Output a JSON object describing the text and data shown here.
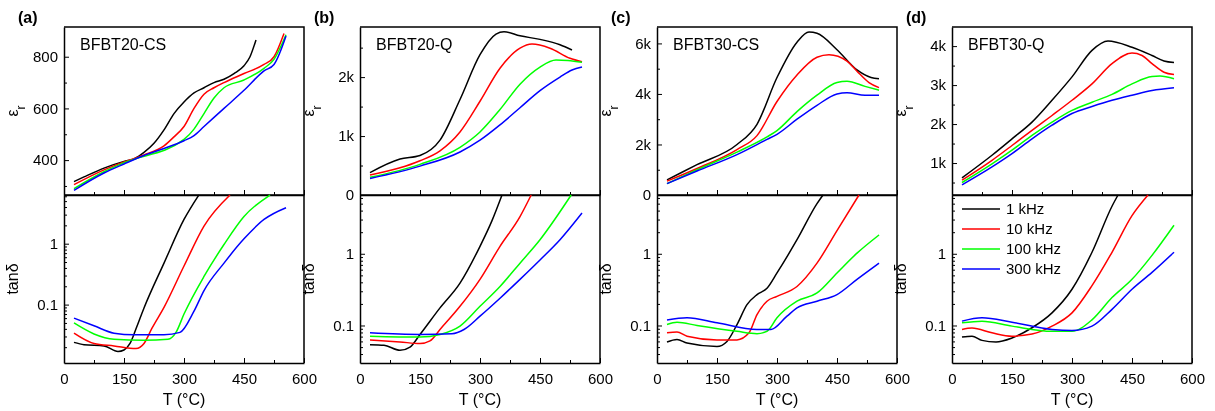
{
  "chart_data": [
    {
      "type": "line",
      "title": "(a)",
      "annotations": [
        "BFBT20-CS"
      ],
      "ylabel": "ε$_{r}$",
      "xlim": [
        0,
        600
      ],
      "xticks": [
        0,
        {
          "value": 75,
          "label": null
        },
        150,
        {
          "value": 225,
          "label": null
        },
        300,
        {
          "value": 375,
          "label": null
        },
        450,
        {
          "value": 525,
          "label": null
        },
        600
      ],
      "ylim": [
        265,
        915
      ],
      "yticks": [
        {
          "value": 300,
          "label": null
        },
        400,
        {
          "value": 500,
          "label": null
        },
        600,
        {
          "value": 700,
          "label": null
        },
        800
      ],
      "tick_labels": "y",
      "series": [
        {
          "color": "#000000",
          "x": [
            25,
            50,
            100,
            150,
            175,
            200,
            225,
            250,
            275,
            300,
            325,
            350,
            375,
            400,
            425,
            450,
            465,
            480
          ],
          "values": [
            317,
            335,
            369,
            395,
            405,
            430,
            465,
            517,
            580,
            625,
            660,
            680,
            700,
            713,
            735,
            765,
            800,
            865
          ]
        },
        {
          "color": "#ff0000",
          "x": [
            25,
            100,
            150,
            200,
            250,
            275,
            300,
            325,
            350,
            375,
            400,
            450,
            500,
            525,
            550
          ],
          "values": [
            305,
            362,
            393,
            420,
            455,
            490,
            530,
            600,
            655,
            680,
            700,
            735,
            770,
            800,
            890
          ]
        },
        {
          "color": "#00ff00",
          "x": [
            25,
            100,
            150,
            200,
            250,
            300,
            325,
            350,
            375,
            400,
            450,
            500,
            525,
            555
          ],
          "values": [
            290,
            355,
            390,
            null,
            null,
            480,
            520,
            580,
            640,
            680,
            710,
            755,
            790,
            885
          ]
        },
        {
          "color": "#0000ff",
          "x": [
            25,
            100,
            150,
            200,
            250,
            300,
            325,
            350,
            400,
            450,
            500,
            525,
            555
          ],
          "values": [
            283,
            350,
            385,
            418,
            445,
            475,
            495,
            530,
            600,
            670,
            745,
            770,
            880
          ]
        }
      ]
    },
    {
      "type": "line",
      "xlabel": "T (°C)",
      "ylabel": "tanδ",
      "log": true,
      "xlim": [
        0,
        600
      ],
      "xticks": [
        0,
        {
          "value": 75,
          "label": null
        },
        150,
        {
          "value": 225,
          "label": null
        },
        300,
        {
          "value": 375,
          "label": null
        },
        450,
        {
          "value": 525,
          "label": null
        },
        600
      ],
      "ylim": [
        0.011,
        6.3
      ],
      "yticks": [
        {
          "value": 0.02,
          "label": null
        },
        {
          "value": 0.03,
          "label": null
        },
        {
          "value": 0.04,
          "label": null
        },
        {
          "value": 0.05,
          "label": null
        },
        {
          "value": 0.06,
          "label": null
        },
        {
          "value": 0.07,
          "label": null
        },
        {
          "value": 0.08,
          "label": null
        },
        {
          "value": 0.09,
          "label": null
        },
        0.1,
        {
          "value": 0.2,
          "label": null
        },
        {
          "value": 0.3,
          "label": null
        },
        {
          "value": 0.4,
          "label": null
        },
        {
          "value": 0.5,
          "label": null
        },
        {
          "value": 0.6,
          "label": null
        },
        {
          "value": 0.7,
          "label": null
        },
        {
          "value": 0.8,
          "label": null
        },
        {
          "value": 0.9,
          "label": null
        },
        1,
        {
          "value": 2,
          "label": null
        },
        {
          "value": 3,
          "label": null
        },
        {
          "value": 4,
          "label": null
        },
        {
          "value": 5,
          "label": null
        },
        {
          "value": 6,
          "label": null
        }
      ],
      "series": [
        {
          "color": "#000000",
          "x": [
            25,
            50,
            100,
            135,
            150,
            165,
            180,
            200,
            250,
            300,
            337
          ],
          "values": [
            0.024,
            0.022,
            0.021,
            0.017,
            0.018,
            0.023,
            0.04,
            0.088,
            0.48,
            2.5,
            6.3
          ]
        },
        {
          "color": "#ff0000",
          "x": [
            25,
            75,
            125,
            180,
            200,
            220,
            250,
            300,
            350,
            415
          ],
          "values": [
            0.034,
            0.023,
            0.021,
            0.019,
            0.023,
            0.041,
            0.09,
            0.43,
            1.95,
            6.3
          ]
        },
        {
          "color": "#00ff00",
          "x": [
            25,
            75,
            125,
            200,
            260,
            280,
            300,
            350,
            400,
            450,
            515
          ],
          "values": [
            0.05,
            0.033,
            0.027,
            0.026,
            0.027,
            0.035,
            0.07,
            0.29,
            0.97,
            2.8,
            6.3
          ]
        },
        {
          "color": "#0000ff",
          "x": [
            25,
            75,
            125,
            175,
            250,
            290,
            325,
            350,
            400,
            450,
            500,
            555
          ],
          "values": [
            0.06,
            0.045,
            0.034,
            0.032,
            0.032,
            0.035,
            0.078,
            0.17,
            0.48,
            1.2,
            2.5,
            3.9
          ]
        }
      ]
    },
    {
      "type": "line",
      "title": "(b)",
      "annotations": [
        "BFBT20-Q"
      ],
      "ylabel": "ε$_{r}$",
      "xlim": [
        0,
        600
      ],
      "xticks": [
        0,
        {
          "value": 75,
          "label": null
        },
        150,
        {
          "value": 225,
          "label": null
        },
        300,
        {
          "value": 375,
          "label": null
        },
        450,
        {
          "value": 525,
          "label": null
        },
        600
      ],
      "ylim": [
        0,
        2850
      ],
      "yticks": [
        {
          "value": 0,
          "label": "0"
        },
        {
          "value": 500,
          "label": null
        },
        {
          "value": 1000,
          "label": "1k"
        },
        {
          "value": 1500,
          "label": null
        },
        {
          "value": 2000,
          "label": "2k"
        },
        {
          "value": 2500,
          "label": null
        }
      ],
      "tick_labels": "y",
      "series": [
        {
          "color": "#000000",
          "x": [
            25,
            100,
            150,
            200,
            250,
            300,
            340,
            360,
            400,
            450,
            500,
            530
          ],
          "values": [
            380,
            610,
            670,
            930,
            1620,
            2380,
            2730,
            2770,
            2700,
            2640,
            2550,
            2460
          ]
        },
        {
          "color": "#ff0000",
          "x": [
            25,
            150,
            200,
            250,
            300,
            350,
            400,
            430,
            475,
            525,
            555
          ],
          "values": [
            340,
            580,
            750,
            1070,
            1590,
            2150,
            2490,
            2560,
            2490,
            2320,
            2260
          ]
        },
        {
          "color": "#00ff00",
          "x": [
            25,
            150,
            250,
            300,
            350,
            400,
            450,
            490,
            520,
            555
          ],
          "values": [
            300,
            520,
            810,
            1070,
            1450,
            1880,
            2170,
            2290,
            2280,
            2250
          ]
        },
        {
          "color": "#0000ff",
          "x": [
            25,
            150,
            250,
            300,
            350,
            400,
            450,
            500,
            530,
            555
          ],
          "values": [
            280,
            490,
            730,
            930,
            1190,
            1480,
            1770,
            2000,
            2120,
            2170
          ]
        }
      ]
    },
    {
      "type": "line",
      "xlabel": "T (°C)",
      "ylabel": "tanδ",
      "log": true,
      "xlim": [
        0,
        600
      ],
      "xticks": [
        0,
        {
          "value": 75,
          "label": null
        },
        150,
        {
          "value": 225,
          "label": null
        },
        300,
        {
          "value": 375,
          "label": null
        },
        450,
        {
          "value": 525,
          "label": null
        },
        600
      ],
      "ylim": [
        0.03,
        6.6
      ],
      "yticks": [
        {
          "value": 0.04,
          "label": null
        },
        {
          "value": 0.05,
          "label": null
        },
        {
          "value": 0.06,
          "label": null
        },
        {
          "value": 0.07,
          "label": null
        },
        {
          "value": 0.08,
          "label": null
        },
        {
          "value": 0.09,
          "label": null
        },
        0.1,
        {
          "value": 0.2,
          "label": null
        },
        {
          "value": 0.3,
          "label": null
        },
        {
          "value": 0.4,
          "label": null
        },
        {
          "value": 0.5,
          "label": null
        },
        {
          "value": 0.6,
          "label": null
        },
        {
          "value": 0.7,
          "label": null
        },
        {
          "value": 0.8,
          "label": null
        },
        {
          "value": 0.9,
          "label": null
        },
        1,
        {
          "value": 2,
          "label": null
        },
        {
          "value": 3,
          "label": null
        },
        {
          "value": 4,
          "label": null
        },
        {
          "value": 5,
          "label": null
        },
        {
          "value": 6,
          "label": null
        }
      ],
      "series": [
        {
          "color": "#000000",
          "x": [
            25,
            60,
            100,
            125,
            150,
            200,
            250,
            300,
            330,
            355
          ],
          "values": [
            0.054,
            0.053,
            0.045,
            0.05,
            0.075,
            0.176,
            0.39,
            1.27,
            2.9,
            6.6
          ]
        },
        {
          "color": "#ff0000",
          "x": [
            25,
            100,
            150,
            175,
            200,
            250,
            300,
            350,
            400,
            428
          ],
          "values": [
            0.063,
            0.059,
            0.056,
            0.061,
            0.088,
            0.185,
            0.44,
            1.27,
            3.3,
            6.6
          ]
        },
        {
          "color": "#00ff00",
          "x": [
            25,
            150,
            200,
            250,
            300,
            350,
            400,
            450,
            528
          ],
          "values": [
            0.071,
            0.069,
            0.075,
            0.098,
            0.185,
            0.35,
            0.74,
            1.57,
            6.6
          ]
        },
        {
          "color": "#0000ff",
          "x": [
            25,
            150,
            230,
            260,
            300,
            350,
            400,
            450,
            500,
            555
          ],
          "values": [
            0.079,
            0.075,
            0.077,
            0.088,
            0.135,
            0.24,
            0.44,
            0.82,
            1.57,
            3.7
          ]
        }
      ]
    },
    {
      "type": "line",
      "title": "(c)",
      "annotations": [
        "BFBT30-CS"
      ],
      "ylabel": "ε$_{r}$",
      "xlim": [
        0,
        600
      ],
      "xticks": [
        0,
        {
          "value": 75,
          "label": null
        },
        150,
        {
          "value": 225,
          "label": null
        },
        300,
        {
          "value": 375,
          "label": null
        },
        450,
        {
          "value": 525,
          "label": null
        },
        600
      ],
      "ylim": [
        0,
        6650
      ],
      "yticks": [
        {
          "value": 0,
          "label": "0"
        },
        {
          "value": 1000,
          "label": null
        },
        {
          "value": 2000,
          "label": "2k"
        },
        {
          "value": 3000,
          "label": null
        },
        {
          "value": 4000,
          "label": "4k"
        },
        {
          "value": 5000,
          "label": null
        },
        {
          "value": 6000,
          "label": "6k"
        }
      ],
      "tick_labels": "y",
      "series": [
        {
          "color": "#000000",
          "x": [
            25,
            100,
            200,
            250,
            300,
            350,
            380,
            400,
            450,
            500,
            535,
            555
          ],
          "values": [
            600,
            1200,
            2000,
            2800,
            4650,
            6050,
            6450,
            6400,
            5750,
            4950,
            4650,
            4600
          ]
        },
        {
          "color": "#ff0000",
          "x": [
            25,
            100,
            200,
            250,
            300,
            350,
            400,
            430,
            475,
            500,
            530,
            555
          ],
          "values": [
            550,
            1050,
            1800,
            2350,
            3700,
            4750,
            5450,
            5550,
            5300,
            4900,
            4450,
            4250
          ]
        },
        {
          "color": "#00ff00",
          "x": [
            25,
            100,
            200,
            275,
            300,
            350,
            400,
            450,
            475,
            520,
            555
          ],
          "values": [
            450,
            1000,
            1700,
            2300,
            2550,
            3300,
            3950,
            4450,
            4500,
            4300,
            4150
          ]
        },
        {
          "color": "#0000ff",
          "x": [
            25,
            100,
            200,
            275,
            300,
            350,
            400,
            450,
            475,
            520,
            555
          ],
          "values": [
            450,
            950,
            1600,
            2200,
            2400,
            3000,
            3550,
            4000,
            4050,
            3950,
            3950
          ]
        }
      ]
    },
    {
      "type": "line",
      "xlabel": "T (°C)",
      "ylabel": "tanδ",
      "log": true,
      "xlim": [
        0,
        600
      ],
      "xticks": [
        0,
        {
          "value": 75,
          "label": null
        },
        150,
        {
          "value": 225,
          "label": null
        },
        300,
        {
          "value": 375,
          "label": null
        },
        450,
        {
          "value": 525,
          "label": null
        },
        600
      ],
      "ylim": [
        0.03,
        6.6
      ],
      "yticks": [
        {
          "value": 0.04,
          "label": null
        },
        {
          "value": 0.05,
          "label": null
        },
        {
          "value": 0.06,
          "label": null
        },
        {
          "value": 0.07,
          "label": null
        },
        {
          "value": 0.08,
          "label": null
        },
        {
          "value": 0.09,
          "label": null
        },
        0.1,
        {
          "value": 0.2,
          "label": null
        },
        {
          "value": 0.3,
          "label": null
        },
        {
          "value": 0.4,
          "label": null
        },
        {
          "value": 0.5,
          "label": null
        },
        {
          "value": 0.6,
          "label": null
        },
        {
          "value": 0.7,
          "label": null
        },
        {
          "value": 0.8,
          "label": null
        },
        {
          "value": 0.9,
          "label": null
        },
        1,
        {
          "value": 2,
          "label": null
        },
        {
          "value": 3,
          "label": null
        },
        {
          "value": 4,
          "label": null
        },
        {
          "value": 5,
          "label": null
        },
        {
          "value": 6,
          "label": null
        }
      ],
      "series": [
        {
          "color": "#000000",
          "x": [
            25,
            50,
            75,
            150,
            175,
            200,
            225,
            250,
            275,
            300,
            350,
            400,
            415
          ],
          "values": [
            0.059,
            0.064,
            0.057,
            0.051,
            0.06,
            0.103,
            0.195,
            0.27,
            0.33,
            0.54,
            1.57,
            5.0,
            6.6
          ]
        },
        {
          "color": "#ff0000",
          "x": [
            25,
            50,
            75,
            150,
            200,
            230,
            250,
            275,
            300,
            350,
            400,
            450,
            505
          ],
          "values": [
            0.079,
            0.081,
            0.071,
            0.063,
            0.063,
            0.079,
            0.142,
            0.218,
            0.255,
            0.35,
            0.74,
            2.1,
            6.6
          ]
        },
        {
          "color": "#00ff00",
          "x": [
            25,
            50,
            100,
            200,
            250,
            275,
            300,
            350,
            400,
            450,
            500,
            555
          ],
          "values": [
            0.103,
            0.111,
            0.1,
            0.083,
            0.077,
            0.083,
            0.128,
            0.218,
            0.284,
            0.54,
            1.02,
            1.83
          ]
        },
        {
          "color": "#0000ff",
          "x": [
            25,
            75,
            150,
            250,
            285,
            325,
            350,
            400,
            450,
            500,
            555
          ],
          "values": [
            0.119,
            0.128,
            0.109,
            0.088,
            0.088,
            0.135,
            0.176,
            0.218,
            0.27,
            0.44,
            0.74
          ]
        }
      ]
    },
    {
      "type": "line",
      "title": "(d)",
      "annotations": [
        "BFBT30-Q"
      ],
      "ylabel": "ε$_{r}$",
      "xlim": [
        0,
        600
      ],
      "xticks": [
        0,
        {
          "value": 75,
          "label": null
        },
        150,
        {
          "value": 225,
          "label": null
        },
        300,
        {
          "value": 375,
          "label": null
        },
        450,
        {
          "value": 525,
          "label": null
        },
        600
      ],
      "ylim": [
        180,
        4490
      ],
      "yticks": [
        {
          "value": 500,
          "label": null
        },
        {
          "value": 1000,
          "label": "1k"
        },
        {
          "value": 1500,
          "label": null
        },
        {
          "value": 2000,
          "label": "2k"
        },
        {
          "value": 2500,
          "label": null
        },
        {
          "value": 3000,
          "label": "3k"
        },
        {
          "value": 3500,
          "label": null
        },
        {
          "value": 4000,
          "label": "4k"
        }
      ],
      "tick_labels": "y",
      "series": [
        {
          "color": "#000000",
          "x": [
            25,
            100,
            150,
            200,
            250,
            300,
            350,
            390,
            450,
            500,
            530,
            555
          ],
          "values": [
            620,
            1200,
            1620,
            2050,
            2610,
            3210,
            3890,
            4130,
            3970,
            3760,
            3620,
            3580
          ]
        },
        {
          "color": "#ff0000",
          "x": [
            25,
            100,
            150,
            200,
            250,
            300,
            350,
            400,
            450,
            475,
            500,
            530,
            555
          ],
          "values": [
            560,
            1070,
            1450,
            1840,
            2220,
            2610,
            3030,
            3550,
            3820,
            3760,
            3550,
            3330,
            3270
          ]
        },
        {
          "color": "#00ff00",
          "x": [
            25,
            100,
            150,
            200,
            250,
            300,
            350,
            400,
            450,
            500,
            520,
            555
          ],
          "values": [
            500,
            980,
            1330,
            1710,
            2050,
            2350,
            2560,
            2760,
            3030,
            3220,
            3230,
            3160
          ]
        },
        {
          "color": "#0000ff",
          "x": [
            25,
            100,
            150,
            200,
            250,
            300,
            350,
            400,
            450,
            500,
            555
          ],
          "values": [
            440,
            900,
            1240,
            1620,
            1970,
            2270,
            2450,
            2610,
            2740,
            2860,
            2930
          ]
        }
      ]
    },
    {
      "type": "line",
      "xlabel": "T (°C)",
      "ylabel": "tanδ",
      "log": true,
      "legend": "top left",
      "xlim": [
        0,
        600
      ],
      "xticks": [
        0,
        {
          "value": 75,
          "label": null
        },
        150,
        {
          "value": 225,
          "label": null
        },
        300,
        {
          "value": 375,
          "label": null
        },
        450,
        {
          "value": 525,
          "label": null
        },
        600
      ],
      "ylim": [
        0.03,
        6.6
      ],
      "yticks": [
        {
          "value": 0.04,
          "label": null
        },
        {
          "value": 0.05,
          "label": null
        },
        {
          "value": 0.06,
          "label": null
        },
        {
          "value": 0.07,
          "label": null
        },
        {
          "value": 0.08,
          "label": null
        },
        {
          "value": 0.09,
          "label": null
        },
        0.1,
        {
          "value": 0.2,
          "label": null
        },
        {
          "value": 0.3,
          "label": null
        },
        {
          "value": 0.4,
          "label": null
        },
        {
          "value": 0.5,
          "label": null
        },
        {
          "value": 0.6,
          "label": null
        },
        {
          "value": 0.7,
          "label": null
        },
        {
          "value": 0.8,
          "label": null
        },
        {
          "value": 0.9,
          "label": null
        },
        1,
        {
          "value": 2,
          "label": null
        },
        {
          "value": 3,
          "label": null
        },
        {
          "value": 4,
          "label": null
        },
        {
          "value": 5,
          "label": null
        },
        {
          "value": 6,
          "label": null
        }
      ],
      "series": [
        {
          "name": "1 kHz",
          "color": "#000000",
          "x": [
            25,
            50,
            75,
            110,
            150,
            200,
            250,
            300,
            350,
            400,
            415
          ],
          "values": [
            0.069,
            0.071,
            0.062,
            0.059,
            0.067,
            0.093,
            0.15,
            0.32,
            1.05,
            4.6,
            6.6
          ]
        },
        {
          "name": "10 kHz",
          "color": "#ff0000",
          "x": [
            25,
            50,
            100,
            150,
            200,
            250,
            300,
            350,
            400,
            450,
            490
          ],
          "values": [
            0.088,
            0.092,
            0.079,
            0.071,
            0.076,
            0.098,
            0.15,
            0.36,
            1.05,
            3.4,
            6.6
          ]
        },
        {
          "name": "100 kHz",
          "color": "#00ff00",
          "x": [
            25,
            75,
            150,
            250,
            300,
            350,
            400,
            450,
            500,
            555
          ],
          "values": [
            0.109,
            0.115,
            0.098,
            0.083,
            0.083,
            0.12,
            0.245,
            0.44,
            0.95,
            2.5
          ]
        },
        {
          "name": "300 kHz",
          "color": "#0000ff",
          "x": [
            25,
            75,
            150,
            250,
            300,
            350,
            400,
            450,
            500,
            555
          ],
          "values": [
            0.115,
            0.128,
            0.111,
            0.088,
            0.085,
            0.098,
            0.168,
            0.32,
            0.55,
            1.05
          ]
        }
      ]
    }
  ]
}
